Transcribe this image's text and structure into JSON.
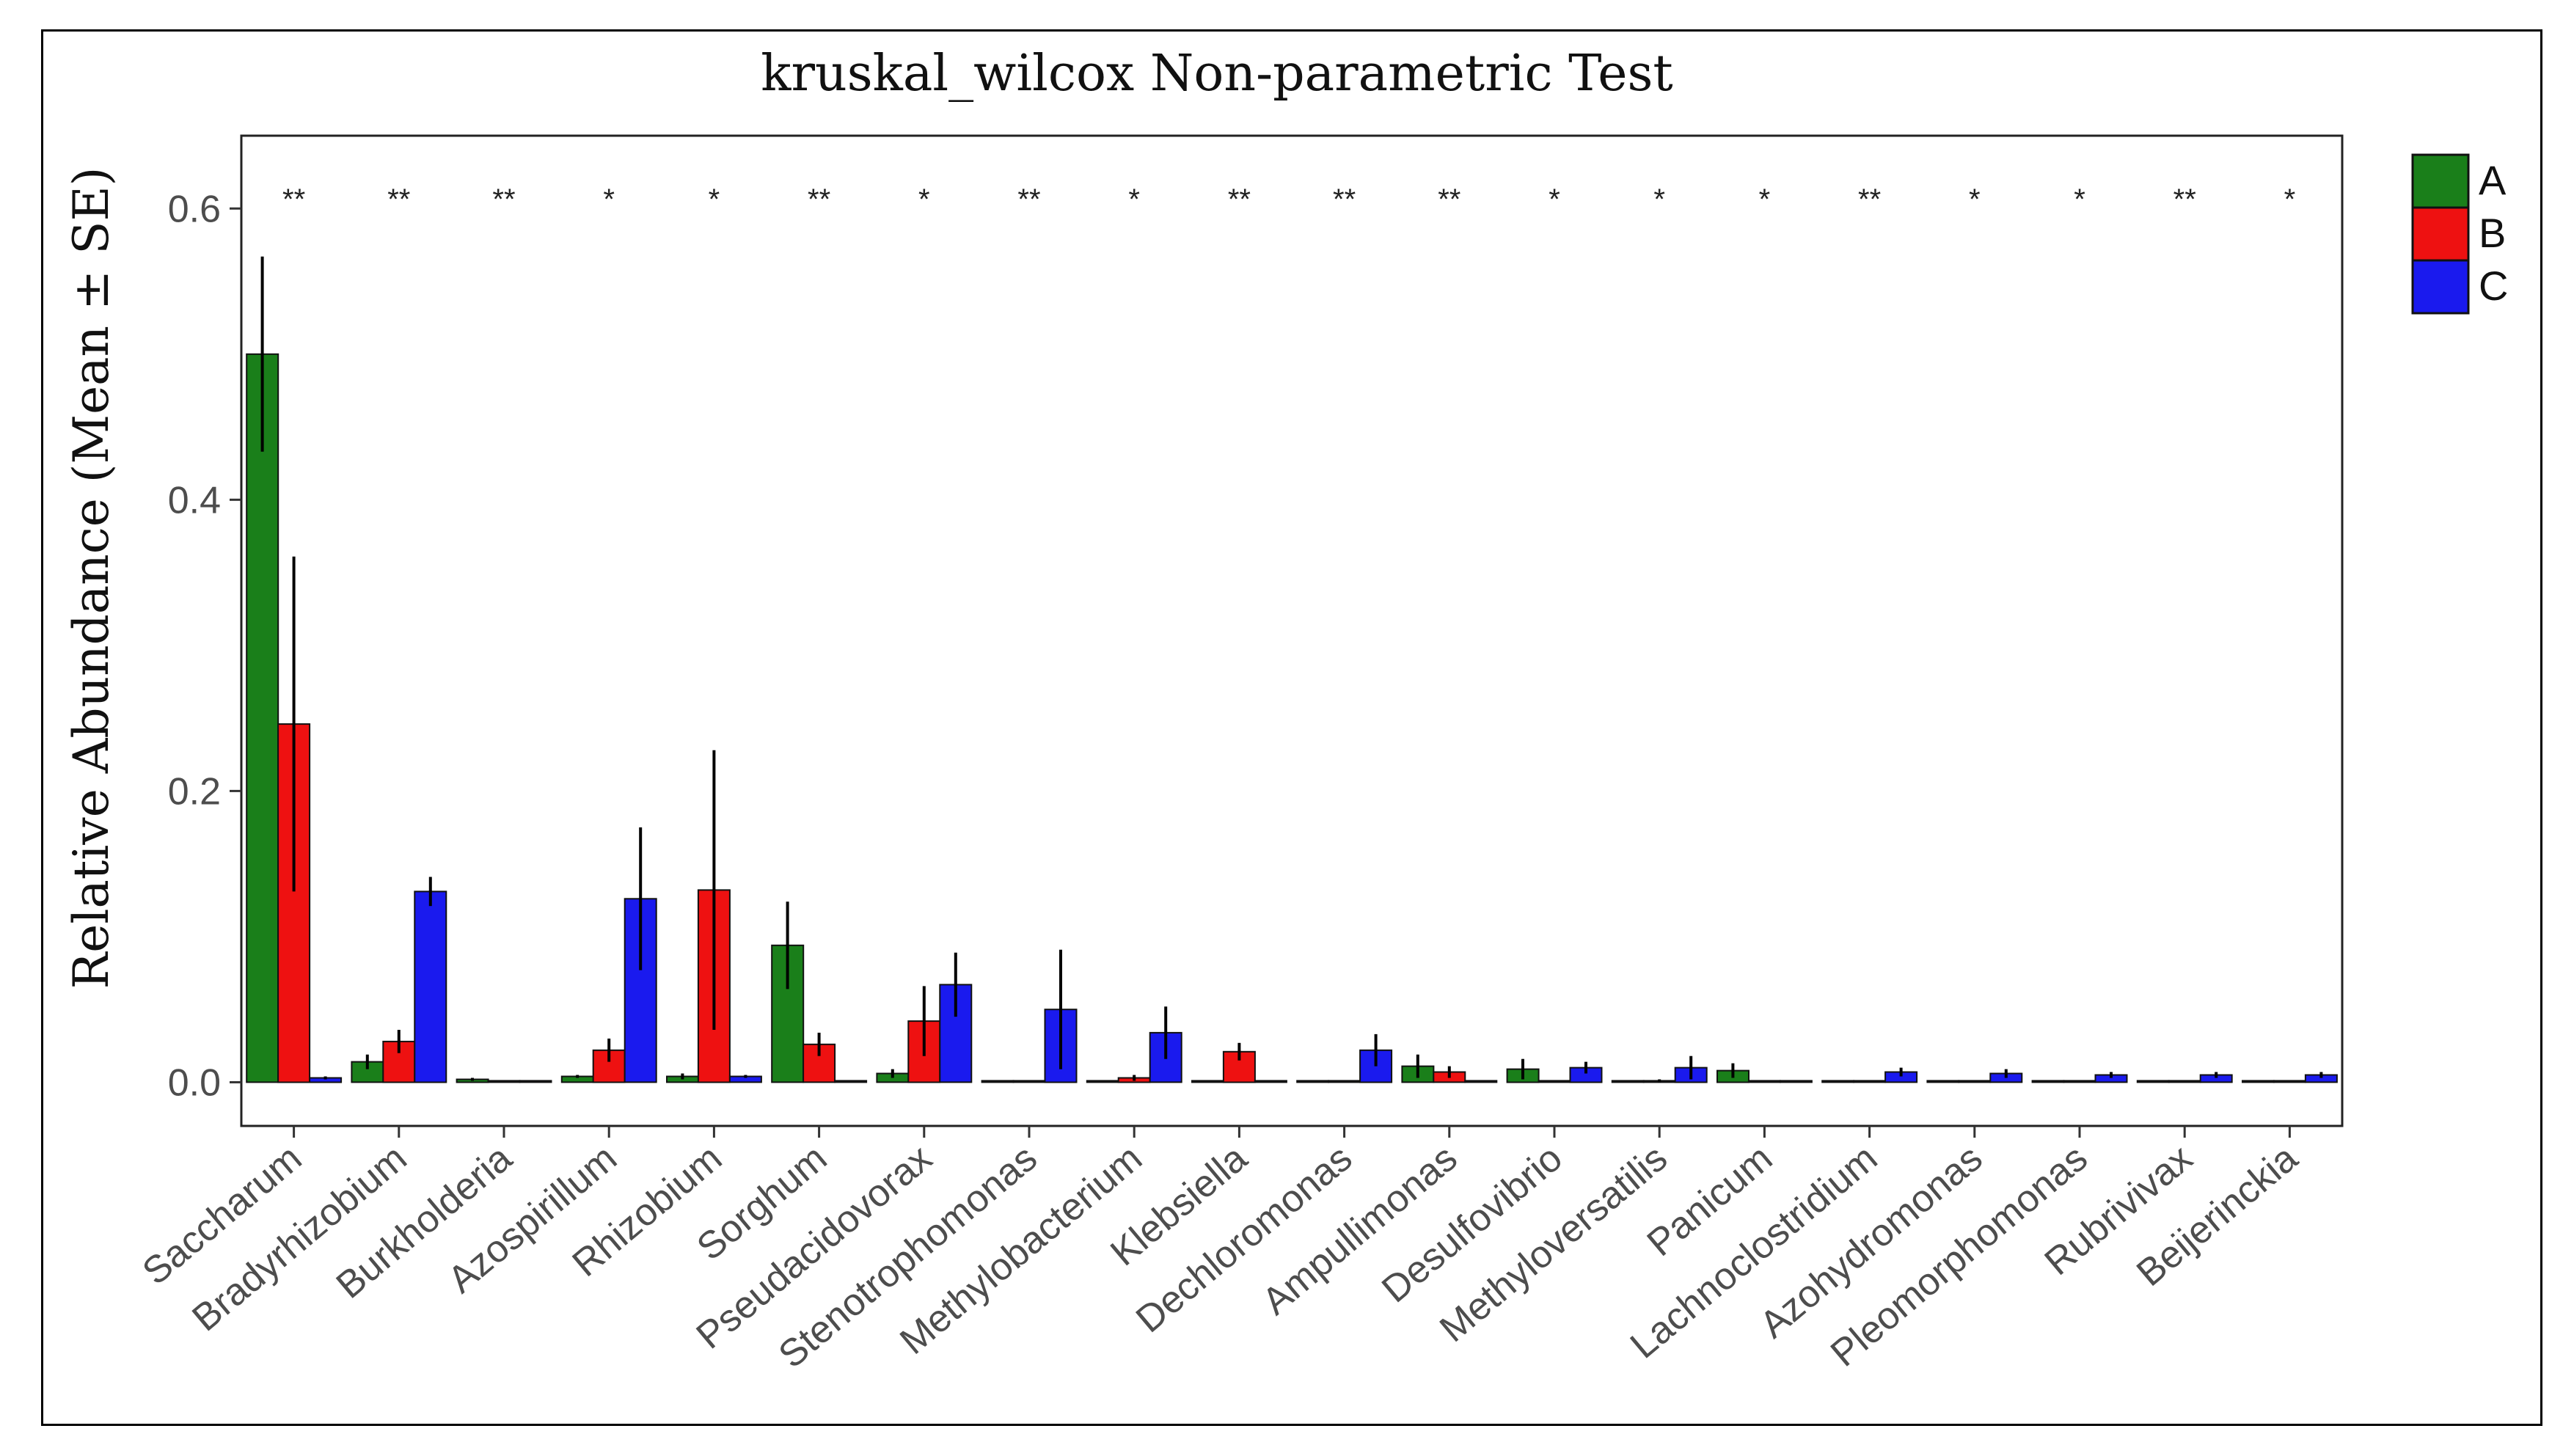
{
  "chart_data": {
    "type": "bar",
    "title": "kruskal_wilcox Non-parametric Test",
    "xlabel": "",
    "ylabel": "Relative Abundance (Mean ± SE)",
    "ylim": [
      -0.03,
      0.65
    ],
    "yticks": [
      0.0,
      0.2,
      0.4,
      0.6
    ],
    "ytick_labels": [
      "0.0",
      "0.2",
      "0.4",
      "0.6"
    ],
    "grid": false,
    "legend_position": "right",
    "categories": [
      "Saccharum",
      "Bradyrhizobium",
      "Burkholderia",
      "Azospirillum",
      "Rhizobium",
      "Sorghum",
      "Pseudacidovorax",
      "Stenotrophomonas",
      "Methylobacterium",
      "Klebsiella",
      "Dechloromonas",
      "Ampullimonas",
      "Desulfovibrio",
      "Methyloversatilis",
      "Panicum",
      "Lachnoclostridium",
      "Azohydromonas",
      "Pleomorphomonas",
      "Rubrivivax",
      "Beijerinckia"
    ],
    "significance": [
      "**",
      "**",
      "**",
      "*",
      "*",
      "**",
      "*",
      "**",
      "*",
      "**",
      "**",
      "**",
      "*",
      "*",
      "*",
      "**",
      "*",
      "*",
      "**",
      "*"
    ],
    "series": [
      {
        "name": "A",
        "color": "#1a7f1a",
        "values": [
          0.5,
          0.014,
          0.002,
          0.004,
          0.004,
          0.094,
          0.006,
          0.0,
          0.001,
          0.0,
          0.0,
          0.011,
          0.009,
          0.001,
          0.008,
          0.0,
          0.0,
          0.0,
          0.0,
          0.0
        ],
        "errors": [
          0.067,
          0.005,
          0.001,
          0.001,
          0.002,
          0.03,
          0.003,
          0.0,
          0.0,
          0.0,
          0.0,
          0.008,
          0.007,
          0.0,
          0.005,
          0.0,
          0.0,
          0.0,
          0.0,
          0.0
        ]
      },
      {
        "name": "B",
        "color": "#ee1111",
        "values": [
          0.246,
          0.028,
          0.0,
          0.022,
          0.132,
          0.026,
          0.042,
          0.0,
          0.003,
          0.021,
          0.0,
          0.007,
          0.0,
          0.001,
          0.0,
          0.0,
          0.0,
          0.0,
          0.0,
          0.0
        ],
        "errors": [
          0.115,
          0.008,
          0.0,
          0.008,
          0.096,
          0.008,
          0.024,
          0.0,
          0.002,
          0.006,
          0.0,
          0.004,
          0.0,
          0.001,
          0.0,
          0.0,
          0.0,
          0.0,
          0.0,
          0.0
        ]
      },
      {
        "name": "C",
        "color": "#1a1aee",
        "values": [
          0.003,
          0.131,
          0.0,
          0.126,
          0.004,
          0.001,
          0.067,
          0.05,
          0.034,
          0.0,
          0.022,
          0.0,
          0.01,
          0.01,
          0.0,
          0.007,
          0.006,
          0.005,
          0.005,
          0.005
        ],
        "errors": [
          0.001,
          0.01,
          0.0,
          0.049,
          0.001,
          0.0,
          0.022,
          0.041,
          0.018,
          0.0,
          0.011,
          0.0,
          0.004,
          0.008,
          0.0,
          0.003,
          0.003,
          0.002,
          0.002,
          0.002
        ]
      }
    ]
  }
}
